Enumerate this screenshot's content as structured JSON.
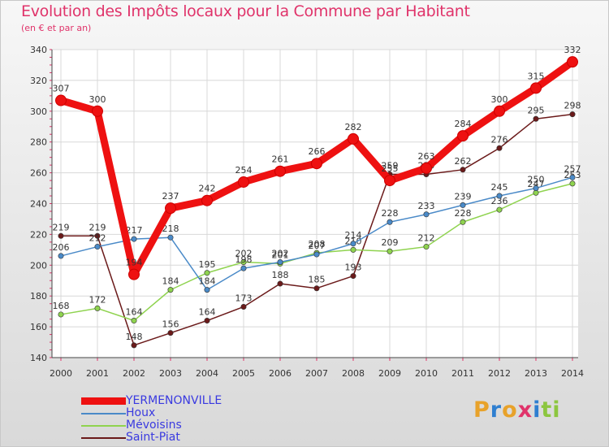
{
  "header": {
    "title": "Evolution des Impôts locaux pour la Commune par Habitant",
    "subtitle": "(en € et par an)"
  },
  "logo": {
    "text": "Proxiti",
    "letters": [
      {
        "ch": "P",
        "color": "#e8a22a"
      },
      {
        "ch": "r",
        "color": "#2f7fd0"
      },
      {
        "ch": "o",
        "color": "#e8a22a"
      },
      {
        "ch": "x",
        "color": "#e0336a"
      },
      {
        "ch": "i",
        "color": "#2f7fd0"
      },
      {
        "ch": "t",
        "color": "#8cc63f"
      },
      {
        "ch": "i",
        "color": "#8cc63f"
      }
    ]
  },
  "chart_data": {
    "type": "line",
    "x": [
      2000,
      2001,
      2002,
      2003,
      2004,
      2005,
      2006,
      2007,
      2008,
      2009,
      2010,
      2011,
      2012,
      2013,
      2014
    ],
    "ylim": [
      140,
      340
    ],
    "yticks": [
      140,
      160,
      180,
      200,
      220,
      240,
      260,
      280,
      300,
      320,
      340
    ],
    "grid": true,
    "legend_position": "bottom-left",
    "series": [
      {
        "name": "Saint-Piat",
        "color": "#6b1a1a",
        "values": [
          219,
          219,
          148,
          156,
          164,
          173,
          188,
          185,
          193,
          259,
          259,
          262,
          276,
          295,
          298
        ]
      },
      {
        "name": "Mévoisins",
        "color": "#8fd34f",
        "values": [
          168,
          172,
          164,
          184,
          195,
          202,
          201,
          208,
          210,
          209,
          212,
          228,
          236,
          247,
          253
        ]
      },
      {
        "name": "Houx",
        "color": "#4a8ac8",
        "values": [
          206,
          212,
          217,
          218,
          184,
          198,
          202,
          207,
          214,
          228,
          233,
          239,
          245,
          250,
          257
        ]
      },
      {
        "name": "YERMENONVILLE",
        "color": "#ee1111",
        "values": [
          307,
          300,
          194,
          237,
          242,
          254,
          261,
          266,
          282,
          255,
          263,
          284,
          300,
          315,
          332
        ]
      }
    ]
  },
  "legend": [
    {
      "name": "YERMENONVILLE",
      "color": "#ee1111",
      "thick": true
    },
    {
      "name": "Houx",
      "color": "#4a8ac8",
      "thick": false
    },
    {
      "name": "Mévoisins",
      "color": "#8fd34f",
      "thick": false
    },
    {
      "name": "Saint-Piat",
      "color": "#6b1a1a",
      "thick": false
    }
  ]
}
